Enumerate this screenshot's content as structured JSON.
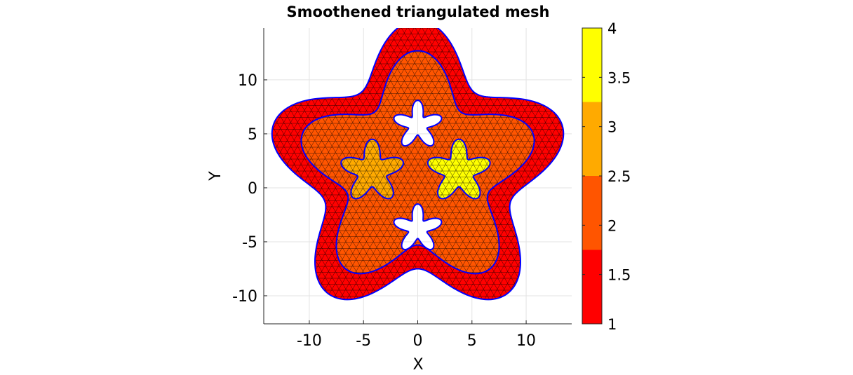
{
  "chart_data": {
    "type": "mesh",
    "title": "Smoothened triangulated mesh",
    "xlabel": "X",
    "ylabel": "Y",
    "xlim": [
      -14.2,
      14.2
    ],
    "ylim": [
      -12.6,
      14.8
    ],
    "xticks": [
      -10,
      -5,
      0,
      5,
      10
    ],
    "xtick_labels": [
      "-10",
      "-5",
      "0",
      "5",
      "10"
    ],
    "yticks": [
      -10,
      -5,
      0,
      5,
      10
    ],
    "ytick_labels": [
      "-10",
      "-5",
      "0",
      "5",
      "10"
    ],
    "grid": true,
    "axis_equal": true,
    "regions": [
      {
        "label": 1,
        "shape": "outer-star-ring",
        "center": [
          0,
          1.5
        ],
        "base_radius": 11.5,
        "lobes": 5,
        "lobe_amplitude": 2.5,
        "color": "#ff0000"
      },
      {
        "label": 2,
        "shape": "inner-star",
        "center": [
          0,
          1.5
        ],
        "base_radius": 9,
        "lobes": 5,
        "lobe_amplitude": 2.2,
        "color": "#ff5500"
      },
      {
        "label": 3,
        "shape": "star-subdomain",
        "center": [
          -4.2,
          1.5
        ],
        "base_radius": 2.2,
        "lobes": 5,
        "lobe_amplitude": 0.8,
        "color": "#ffaa00"
      },
      {
        "label": 4,
        "shape": "star-subdomain",
        "center": [
          3.8,
          1.5
        ],
        "base_radius": 2.2,
        "lobes": 5,
        "lobe_amplitude": 0.8,
        "color": "#ffff00"
      }
    ],
    "holes": [
      {
        "shape": "star-hole",
        "center": [
          0,
          5.8
        ],
        "base_radius": 1.6,
        "lobes": 5,
        "lobe_amplitude": 0.7
      },
      {
        "shape": "star-hole",
        "center": [
          0,
          -3.8
        ],
        "base_radius": 1.6,
        "lobes": 5,
        "lobe_amplitude": 0.7
      }
    ],
    "boundary_color": "#0000ff",
    "mesh_edge_color": "#000000",
    "colorbar": {
      "range": [
        1,
        4
      ],
      "ticks": [
        1,
        1.5,
        2,
        2.5,
        3,
        3.5,
        4
      ],
      "tick_labels": [
        "1",
        "1.5",
        "2",
        "2.5",
        "3",
        "3.5",
        "4"
      ],
      "bands": [
        {
          "from": 1,
          "to": 1.75,
          "color": "#ff0000"
        },
        {
          "from": 1.75,
          "to": 2.5,
          "color": "#ff5500"
        },
        {
          "from": 2.5,
          "to": 3.25,
          "color": "#ffaa00"
        },
        {
          "from": 3.25,
          "to": 4,
          "color": "#ffff00"
        }
      ]
    }
  }
}
